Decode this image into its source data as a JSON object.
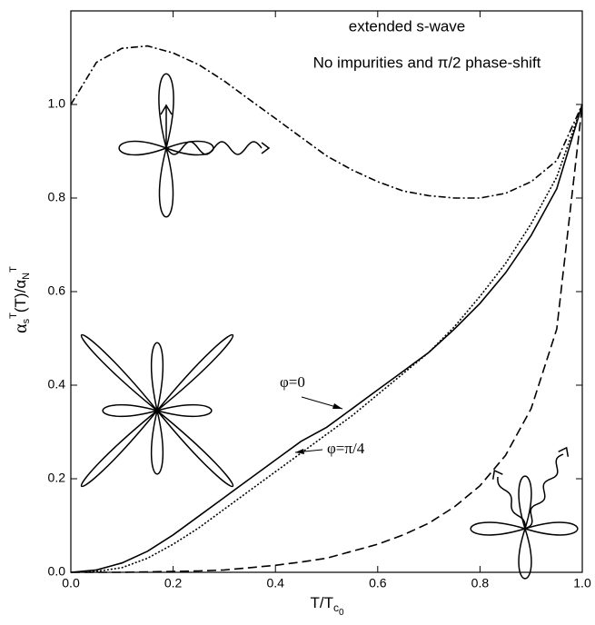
{
  "chart_data": {
    "type": "line",
    "annotations": [
      "extended s-wave",
      "No impurities and π/2 phase-shift",
      "φ=0",
      "φ=π/4"
    ],
    "x_label": [
      "T/T",
      "c",
      "0"
    ],
    "y_label": [
      "α",
      "s",
      "T",
      "(T)/α",
      "N",
      "T"
    ],
    "x": [
      0,
      0.05,
      0.1,
      0.15,
      0.2,
      0.25,
      0.3,
      0.35,
      0.4,
      0.45,
      0.5,
      0.55,
      0.6,
      0.65,
      0.7,
      0.75,
      0.8,
      0.85,
      0.9,
      0.95,
      1.0
    ],
    "series": [
      {
        "color": "#000000",
        "dash": "8 3 2 3",
        "values": [
          1.0,
          1.09,
          1.12,
          1.125,
          1.11,
          1.085,
          1.05,
          1.01,
          0.97,
          0.93,
          0.89,
          0.86,
          0.835,
          0.815,
          0.805,
          0.8,
          0.8,
          0.81,
          0.835,
          0.88,
          1.0
        ]
      },
      {
        "color": "#000000",
        "dash": "none",
        "values": [
          0.0,
          0.005,
          0.02,
          0.045,
          0.08,
          0.12,
          0.16,
          0.2,
          0.24,
          0.28,
          0.31,
          0.35,
          0.39,
          0.43,
          0.47,
          0.52,
          0.575,
          0.64,
          0.72,
          0.82,
          1.0
        ]
      },
      {
        "color": "#000000",
        "dash": "2 2",
        "values": [
          0.0,
          0.002,
          0.01,
          0.03,
          0.06,
          0.095,
          0.135,
          0.175,
          0.215,
          0.255,
          0.295,
          0.335,
          0.38,
          0.425,
          0.47,
          0.525,
          0.59,
          0.66,
          0.745,
          0.845,
          1.0
        ]
      },
      {
        "color": "#000000",
        "dash": "10 5",
        "values": [
          0.0,
          0.0,
          0.0,
          0.001,
          0.002,
          0.003,
          0.005,
          0.01,
          0.015,
          0.022,
          0.03,
          0.045,
          0.06,
          0.08,
          0.105,
          0.14,
          0.185,
          0.25,
          0.35,
          0.52,
          1.0
        ]
      }
    ],
    "xlim": [
      0,
      1.0
    ],
    "ylim": [
      0,
      1.2
    ],
    "xticks": [
      {
        "value": 0,
        "label": "0.0"
      },
      {
        "value": 0.2,
        "label": "0.2"
      },
      {
        "value": 0.4,
        "label": "0.4"
      },
      {
        "value": 0.6,
        "label": "0.6"
      },
      {
        "value": 0.8,
        "label": "0.8"
      },
      {
        "value": 1.0,
        "label": "1.0"
      }
    ],
    "yticks": [
      {
        "value": 0,
        "label": "0.0"
      },
      {
        "value": 0.2,
        "label": "0.2"
      },
      {
        "value": 0.4,
        "label": "0.4"
      },
      {
        "value": 0.6,
        "label": "0.6"
      },
      {
        "value": 0.8,
        "label": "0.8"
      },
      {
        "value": 1.0,
        "label": "1.0"
      }
    ]
  }
}
